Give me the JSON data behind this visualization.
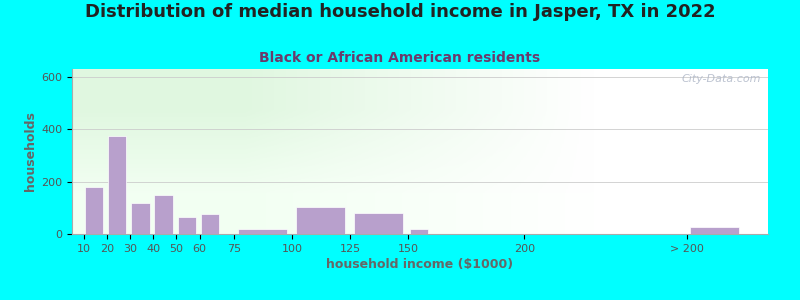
{
  "title": "Distribution of median household income in Jasper, TX in 2022",
  "subtitle": "Black or African American residents",
  "xlabel": "household income ($1000)",
  "ylabel": "households",
  "background_color": "#00FFFF",
  "bar_color": "#b8a0cc",
  "plot_bg_color_left": "#e8f5e8",
  "plot_bg_color_right": "#ffffff",
  "title_fontsize": 13,
  "subtitle_fontsize": 10,
  "axis_label_fontsize": 9,
  "tick_fontsize": 8,
  "title_color": "#222222",
  "subtitle_color": "#6B3A6B",
  "axis_label_color": "#666666",
  "watermark": "City-Data.com",
  "bar_left_edges": [
    10,
    20,
    30,
    40,
    50,
    60,
    75,
    100,
    125,
    150,
    220,
    270
  ],
  "bar_widths": [
    9,
    9,
    9,
    9,
    9,
    9,
    24,
    24,
    24,
    9,
    9,
    24
  ],
  "values": [
    180,
    375,
    120,
    150,
    65,
    75,
    20,
    105,
    80,
    20,
    0,
    25
  ],
  "xtick_positions": [
    10,
    20,
    30,
    40,
    50,
    60,
    75,
    100,
    125,
    150,
    200,
    270
  ],
  "xtick_labels": [
    "10",
    "20",
    "30",
    "40",
    "50",
    "60",
    "75",
    "100",
    "125",
    "150",
    "200",
    "> 200"
  ],
  "ylim": [
    0,
    630
  ],
  "yticks": [
    0,
    200,
    400,
    600
  ],
  "xlim": [
    5,
    305
  ]
}
